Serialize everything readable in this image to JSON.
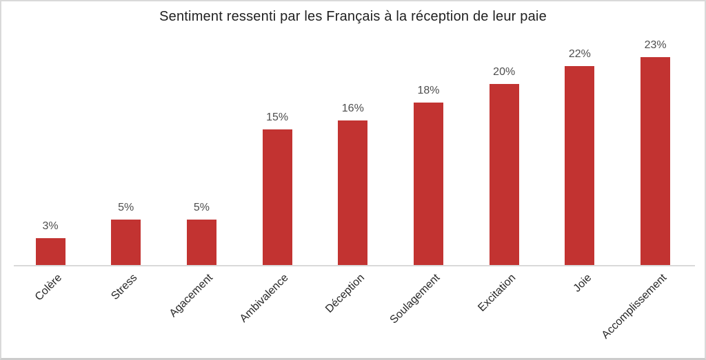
{
  "frame": {
    "background": "#ffffff",
    "border_color": "#d9d9d9"
  },
  "chart_data": {
    "type": "bar",
    "title": "Sentiment ressenti par les Français à la réception de leur paie",
    "categories": [
      "Colère",
      "Stress",
      "Agacement",
      "Ambivalence",
      "Déception",
      "Soulagement",
      "Excitation",
      "Joie",
      "Accomplissement"
    ],
    "values": [
      3,
      5,
      5,
      15,
      16,
      18,
      20,
      22,
      23
    ],
    "value_labels": [
      "3%",
      "5%",
      "5%",
      "15%",
      "16%",
      "18%",
      "20%",
      "22%",
      "23%"
    ],
    "xlabel": "",
    "ylabel": "",
    "ylim": [
      0,
      25
    ],
    "grid": false,
    "legend": false,
    "category_label_rotation_deg": 45,
    "bar_color": "#c23331",
    "value_label_color": "#4d4d4d",
    "category_label_color": "#262626",
    "title_color": "#1f1f1f",
    "axis_line_color": "#d9d9d9"
  }
}
